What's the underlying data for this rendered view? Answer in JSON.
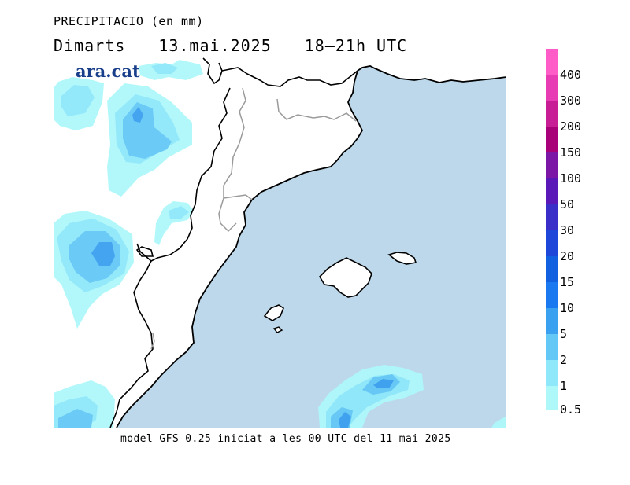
{
  "header": {
    "title": "PRECIPITACIO (en mm)",
    "day": "Dimarts",
    "date": "13.mai.2025",
    "time": "18–21h UTC"
  },
  "logo": {
    "text": "ara.cat"
  },
  "footer": {
    "text": "model GFS 0.25 iniciat a les 00 UTC del 11 mai 2025"
  },
  "legend": {
    "labels": [
      "400",
      "300",
      "200",
      "150",
      "100",
      "50",
      "30",
      "20",
      "15",
      "10",
      "5",
      "2",
      "1",
      "0.5"
    ],
    "colors": [
      "#ff5cc8",
      "#e83cb4",
      "#c71e96",
      "#a80078",
      "#7b16a6",
      "#5a18b8",
      "#3a2ec8",
      "#1e46d8",
      "#1060e0",
      "#1a78f0",
      "#3aa0f0",
      "#64c8f6",
      "#8ee8fa",
      "#aef8fa"
    ]
  },
  "map": {
    "sea_color": "#bcd8ea",
    "land_color": "#ffffff",
    "precip_colors": {
      "p05": "#aef8fa",
      "p1": "#8ee8fa",
      "p2": "#64c8f6",
      "p5": "#3aa0f0"
    }
  }
}
